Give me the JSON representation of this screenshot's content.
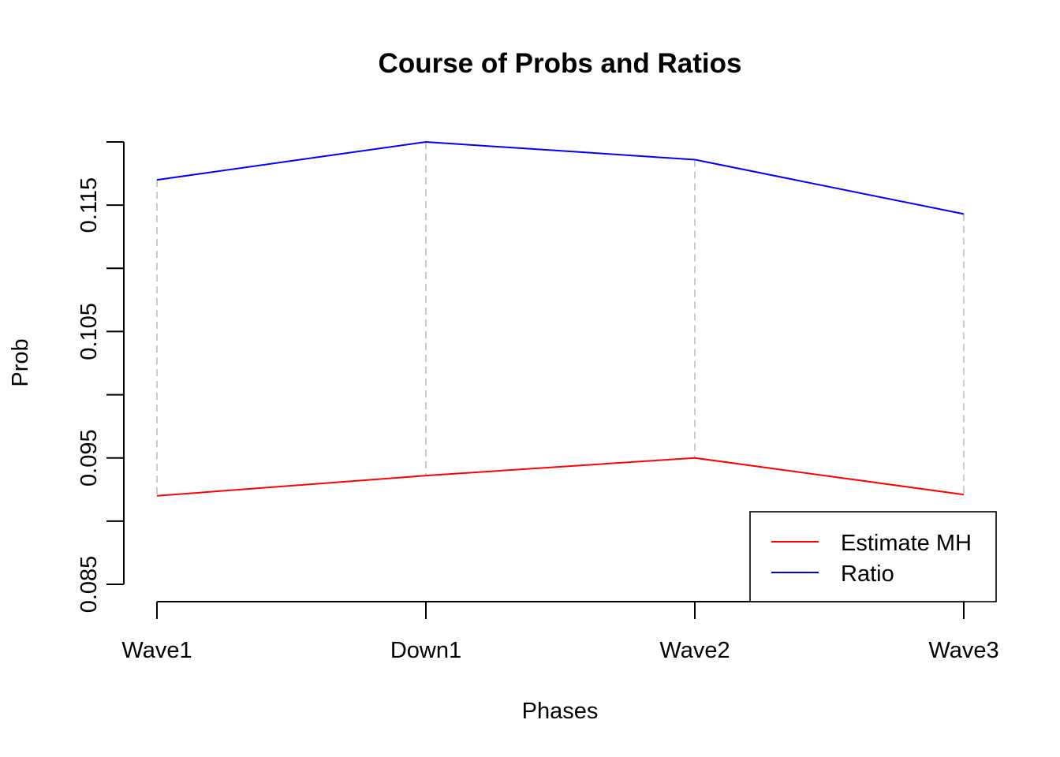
{
  "chart_data": {
    "type": "line",
    "title": "Course of Probs and Ratios",
    "xlabel": "Phases",
    "ylabel": "Prob",
    "categories": [
      "Wave1",
      "Down1",
      "Wave2",
      "Wave3"
    ],
    "ylim": [
      0.085,
      0.12
    ],
    "yticks": [
      0.085,
      0.09,
      0.095,
      0.1,
      0.105,
      0.11,
      0.115,
      0.12
    ],
    "ytick_labels": [
      "0.085",
      "",
      "0.095",
      "",
      "0.105",
      "",
      "0.115",
      ""
    ],
    "series": [
      {
        "name": "Estimate MH",
        "color": "#ff0000",
        "values": [
          0.092,
          0.0936,
          0.095,
          0.0921
        ]
      },
      {
        "name": "Ratio",
        "color": "#0000ff",
        "values": [
          0.117,
          0.12,
          0.1186,
          0.1143
        ]
      }
    ],
    "drop_lines": {
      "color": "#bebebe",
      "style": "dashed"
    },
    "legend": {
      "position": "bottom-right"
    },
    "grid": false
  }
}
